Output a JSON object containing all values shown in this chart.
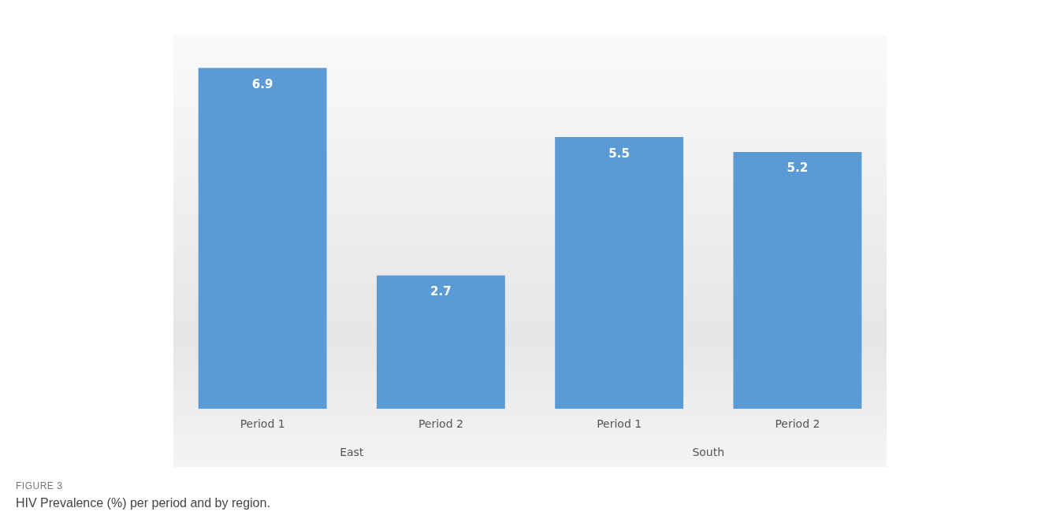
{
  "chart_data": {
    "type": "bar",
    "title": "FIGURE 3",
    "subtitle": "HIV Prevalence (%) per period and by region.",
    "categories": [
      "Period 1",
      "Period 2",
      "Period 1",
      "Period 2"
    ],
    "values": [
      6.9,
      2.7,
      5.5,
      5.2
    ],
    "color": "#5b9bd5",
    "data_labels": true,
    "grid": false,
    "legend": false,
    "annotations": [
      "East",
      "South"
    ]
  }
}
